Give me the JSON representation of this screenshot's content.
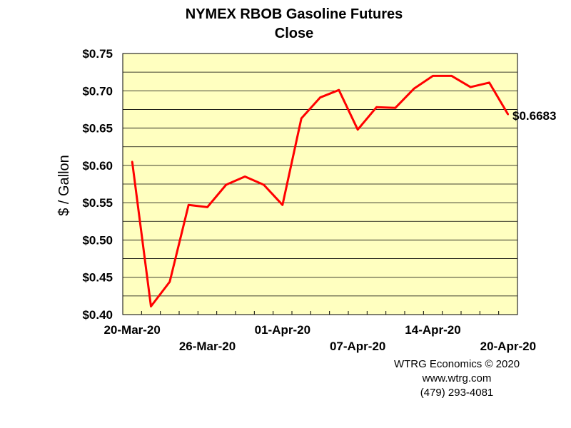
{
  "chart_data": {
    "type": "line",
    "title": "NYMEX RBOB Gasoline Futures",
    "subtitle": "Close",
    "ylabel": "$ / Gallon",
    "xlabel": "",
    "ylim": [
      0.4,
      0.75
    ],
    "yticks": [
      "$0.40",
      "$0.45",
      "$0.50",
      "$0.55",
      "$0.60",
      "$0.65",
      "$0.70",
      "$0.75"
    ],
    "grid": true,
    "plot_background": "#ffffc0",
    "line_color": "#ff0000",
    "x": [
      "20-Mar-20",
      "23-Mar-20",
      "24-Mar-20",
      "25-Mar-20",
      "26-Mar-20",
      "27-Mar-20",
      "30-Mar-20",
      "31-Mar-20",
      "01-Apr-20",
      "02-Apr-20",
      "03-Apr-20",
      "06-Apr-20",
      "07-Apr-20",
      "08-Apr-20",
      "09-Apr-20",
      "13-Apr-20",
      "14-Apr-20",
      "15-Apr-20",
      "16-Apr-20",
      "17-Apr-20",
      "20-Apr-20"
    ],
    "values": [
      0.605,
      0.411,
      0.444,
      0.547,
      0.544,
      0.574,
      0.585,
      0.574,
      0.547,
      0.663,
      0.691,
      0.701,
      0.648,
      0.678,
      0.677,
      0.703,
      0.72,
      0.72,
      0.705,
      0.711,
      0.6683
    ],
    "x_tick_labels": [
      {
        "index": 0,
        "label": "20-Mar-20",
        "row": 1
      },
      {
        "index": 4,
        "label": "26-Mar-20",
        "row": 2
      },
      {
        "index": 8,
        "label": "01-Apr-20",
        "row": 1
      },
      {
        "index": 12,
        "label": "07-Apr-20",
        "row": 2
      },
      {
        "index": 16,
        "label": "14-Apr-20",
        "row": 1
      },
      {
        "index": 20,
        "label": "20-Apr-20",
        "row": 2
      }
    ],
    "last_value_label": "$0.6683"
  },
  "credits": {
    "line1": "WTRG Economics © 2020",
    "line2": "www.wtrg.com",
    "line3": "(479) 293-4081"
  }
}
